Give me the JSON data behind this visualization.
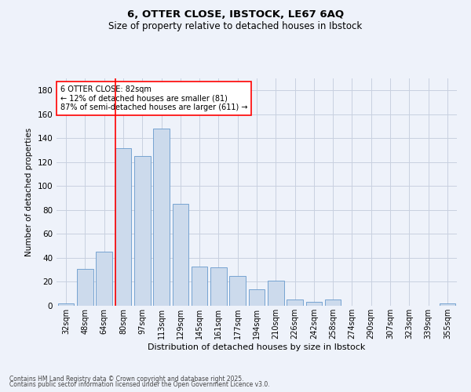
{
  "title1": "6, OTTER CLOSE, IBSTOCK, LE67 6AQ",
  "title2": "Size of property relative to detached houses in Ibstock",
  "xlabel": "Distribution of detached houses by size in Ibstock",
  "ylabel": "Number of detached properties",
  "categories": [
    "32sqm",
    "48sqm",
    "64sqm",
    "80sqm",
    "97sqm",
    "113sqm",
    "129sqm",
    "145sqm",
    "161sqm",
    "177sqm",
    "194sqm",
    "210sqm",
    "226sqm",
    "242sqm",
    "258sqm",
    "274sqm",
    "290sqm",
    "307sqm",
    "323sqm",
    "339sqm",
    "355sqm"
  ],
  "values": [
    2,
    31,
    45,
    132,
    125,
    148,
    85,
    33,
    32,
    25,
    14,
    21,
    5,
    3,
    5,
    0,
    0,
    0,
    0,
    0,
    2
  ],
  "bar_color": "#ccdaec",
  "bar_edge_color": "#6699cc",
  "grid_color": "#c8d0e0",
  "bg_color": "#eef2fa",
  "red_line_x": 3,
  "annotation_text": "6 OTTER CLOSE: 82sqm\n← 12% of detached houses are smaller (81)\n87% of semi-detached houses are larger (611) →",
  "annotation_box_facecolor": "white",
  "annotation_box_edgecolor": "red",
  "ylim": [
    0,
    190
  ],
  "yticks": [
    0,
    20,
    40,
    60,
    80,
    100,
    120,
    140,
    160,
    180
  ],
  "footnote1": "Contains HM Land Registry data © Crown copyright and database right 2025.",
  "footnote2": "Contains public sector information licensed under the Open Government Licence v3.0."
}
